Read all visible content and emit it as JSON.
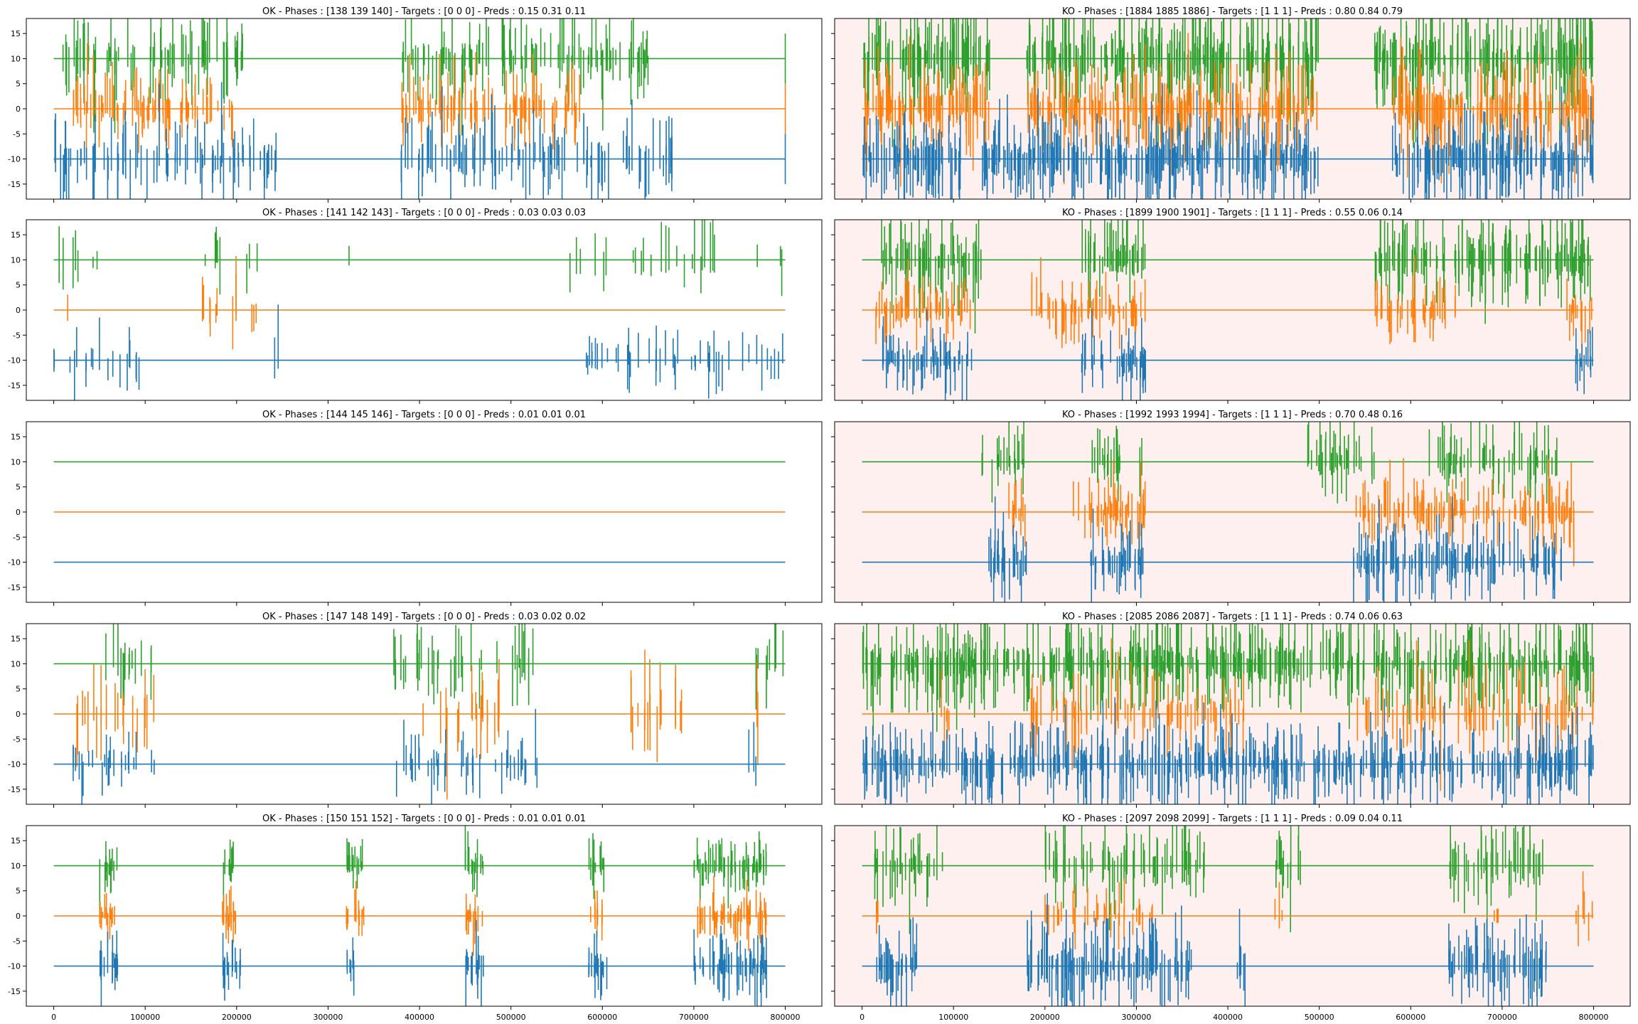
{
  "figure": {
    "background": "#ffffff",
    "ko_background": "#fff0f0",
    "colors": {
      "green": "#2ca02c",
      "orange": "#ff7f0e",
      "blue": "#1f77b4"
    },
    "sharey": true,
    "sharex": true
  },
  "chart_data": [
    {
      "type": "line",
      "title": "OK - Phases : [138 139 140] - Targets : [0 0 0] - Preds : 0.15 0.31 0.11",
      "highlight": false,
      "xlim": [
        -30000,
        840000
      ],
      "ylim": [
        -18,
        18
      ],
      "yticks": [
        -15,
        -10,
        -5,
        0,
        5,
        10,
        15
      ],
      "xticks": [
        0,
        100000,
        200000,
        300000,
        400000,
        500000,
        600000,
        700000,
        800000
      ],
      "show_xticklabels": false,
      "show_yticklabels": true,
      "series": [
        {
          "color": "green",
          "baseline": 10,
          "density": 0.55,
          "amp": 7,
          "clusters": [
            [
              10000,
              60000
            ],
            [
              60000,
              170000
            ],
            [
              170000,
              210000
            ],
            [
              380000,
              480000
            ],
            [
              490000,
              650000
            ]
          ]
        },
        {
          "color": "orange",
          "baseline": 0,
          "density": 0.6,
          "amp": 6,
          "clusters": [
            [
              20000,
              60000
            ],
            [
              60000,
              200000
            ],
            [
              380000,
              580000
            ]
          ]
        },
        {
          "color": "blue",
          "baseline": -10,
          "density": 0.45,
          "amp": 7,
          "clusters": [
            [
              0,
              100000
            ],
            [
              100000,
              250000
            ],
            [
              380000,
              580000
            ],
            [
              570000,
              680000
            ]
          ]
        }
      ],
      "ends": [
        800000
      ]
    },
    {
      "type": "line",
      "title": "KO - Phases : [1884 1885 1886] - Targets : [1 1 1] - Preds : 0.80 0.84 0.79",
      "highlight": true,
      "xlim": [
        -30000,
        840000
      ],
      "ylim": [
        -18,
        18
      ],
      "yticks": [
        -15,
        -10,
        -5,
        0,
        5,
        10,
        15
      ],
      "xticks": [
        0,
        100000,
        200000,
        300000,
        400000,
        500000,
        600000,
        700000,
        800000
      ],
      "show_xticklabels": false,
      "show_yticklabels": false,
      "series": [
        {
          "color": "green",
          "baseline": 10,
          "density": 0.95,
          "amp": 8,
          "clusters": [
            [
              0,
              140000
            ],
            [
              180000,
              500000
            ],
            [
              560000,
              800000
            ]
          ]
        },
        {
          "color": "orange",
          "baseline": 0,
          "density": 0.9,
          "amp": 7,
          "clusters": [
            [
              0,
              140000
            ],
            [
              180000,
              500000
            ],
            [
              580000,
              800000
            ]
          ]
        },
        {
          "color": "blue",
          "baseline": -10,
          "density": 0.95,
          "amp": 7,
          "clusters": [
            [
              0,
              110000
            ],
            [
              130000,
              500000
            ],
            [
              580000,
              800000
            ]
          ]
        }
      ]
    },
    {
      "type": "line",
      "title": "OK - Phases : [141 142 143] - Targets : [0 0 0] - Preds : 0.03 0.03 0.03",
      "highlight": false,
      "xlim": [
        -30000,
        840000
      ],
      "ylim": [
        -18,
        18
      ],
      "yticks": [
        -15,
        -10,
        -5,
        0,
        5,
        10,
        15
      ],
      "xticks": [
        0,
        100000,
        200000,
        300000,
        400000,
        500000,
        600000,
        700000,
        800000
      ],
      "show_xticklabels": false,
      "show_yticklabels": true,
      "series": [
        {
          "color": "green",
          "baseline": 10,
          "density": 0.15,
          "amp": 6,
          "clusters": [
            [
              0,
              60000
            ],
            [
              160000,
              230000
            ],
            [
              320000,
              330000
            ],
            [
              560000,
              800000
            ]
          ]
        },
        {
          "color": "orange",
          "baseline": 0,
          "density": 0.2,
          "amp": 6,
          "clusters": [
            [
              15000,
              20000
            ],
            [
              160000,
              240000
            ]
          ]
        },
        {
          "color": "blue",
          "baseline": -10,
          "density": 0.25,
          "amp": 5,
          "clusters": [
            [
              0,
              100000
            ],
            [
              240000,
              250000
            ],
            [
              560000,
              800000
            ]
          ]
        }
      ]
    },
    {
      "type": "line",
      "title": "KO - Phases : [1899 1900 1901] - Targets : [1 1 1] - Preds : 0.55 0.06 0.14",
      "highlight": true,
      "xlim": [
        -30000,
        840000
      ],
      "ylim": [
        -18,
        18
      ],
      "yticks": [
        -15,
        -10,
        -5,
        0,
        5,
        10,
        15
      ],
      "xticks": [
        0,
        100000,
        200000,
        300000,
        400000,
        500000,
        600000,
        700000,
        800000
      ],
      "show_xticklabels": false,
      "show_yticklabels": false,
      "series": [
        {
          "color": "green",
          "baseline": 10,
          "density": 0.8,
          "amp": 7,
          "clusters": [
            [
              20000,
              130000
            ],
            [
              240000,
              310000
            ],
            [
              560000,
              800000
            ]
          ]
        },
        {
          "color": "orange",
          "baseline": 0,
          "density": 0.6,
          "amp": 5,
          "clusters": [
            [
              15000,
              120000
            ],
            [
              180000,
              310000
            ],
            [
              560000,
              650000
            ],
            [
              770000,
              800000
            ]
          ]
        },
        {
          "color": "blue",
          "baseline": -10,
          "density": 0.8,
          "amp": 5,
          "clusters": [
            [
              20000,
              120000
            ],
            [
              240000,
              310000
            ],
            [
              780000,
              800000
            ]
          ]
        }
      ]
    },
    {
      "type": "line",
      "title": "OK - Phases : [144 145 146] - Targets : [0 0 0] - Preds : 0.01 0.01 0.01",
      "highlight": false,
      "xlim": [
        -30000,
        840000
      ],
      "ylim": [
        -18,
        18
      ],
      "yticks": [
        -15,
        -10,
        -5,
        0,
        5,
        10,
        15
      ],
      "xticks": [
        0,
        100000,
        200000,
        300000,
        400000,
        500000,
        600000,
        700000,
        800000
      ],
      "show_xticklabels": false,
      "show_yticklabels": true,
      "series": [
        {
          "color": "green",
          "baseline": 10,
          "density": 0,
          "amp": 0,
          "clusters": []
        },
        {
          "color": "orange",
          "baseline": 0,
          "density": 0,
          "amp": 0,
          "clusters": []
        },
        {
          "color": "blue",
          "baseline": -10,
          "density": 0,
          "amp": 0,
          "clusters": []
        }
      ]
    },
    {
      "type": "line",
      "title": "KO - Phases : [1992 1993 1994] - Targets : [1 1 1] - Preds : 0.70 0.48 0.16",
      "highlight": true,
      "xlim": [
        -30000,
        840000
      ],
      "ylim": [
        -18,
        18
      ],
      "yticks": [
        -15,
        -10,
        -5,
        0,
        5,
        10,
        15
      ],
      "xticks": [
        0,
        100000,
        200000,
        300000,
        400000,
        500000,
        600000,
        700000,
        800000
      ],
      "show_xticklabels": false,
      "show_yticklabels": false,
      "series": [
        {
          "color": "green",
          "baseline": 10,
          "density": 0.55,
          "amp": 6,
          "clusters": [
            [
              130000,
              180000
            ],
            [
              250000,
              310000
            ],
            [
              480000,
              560000
            ],
            [
              620000,
              760000
            ]
          ]
        },
        {
          "color": "orange",
          "baseline": 0,
          "density": 0.7,
          "amp": 5,
          "clusters": [
            [
              160000,
              180000
            ],
            [
              230000,
              310000
            ],
            [
              540000,
              780000
            ]
          ]
        },
        {
          "color": "blue",
          "baseline": -10,
          "density": 0.75,
          "amp": 6,
          "clusters": [
            [
              130000,
              180000
            ],
            [
              250000,
              310000
            ],
            [
              530000,
              770000
            ]
          ]
        }
      ]
    },
    {
      "type": "line",
      "title": "OK - Phases : [147 148 149] - Targets : [0 0 0] - Preds : 0.03 0.02 0.02",
      "highlight": false,
      "xlim": [
        -30000,
        840000
      ],
      "ylim": [
        -18,
        18
      ],
      "yticks": [
        -15,
        -10,
        -5,
        0,
        5,
        10,
        15
      ],
      "xticks": [
        0,
        100000,
        200000,
        300000,
        400000,
        500000,
        600000,
        700000,
        800000
      ],
      "show_xticklabels": false,
      "show_yticklabels": true,
      "series": [
        {
          "color": "green",
          "baseline": 10,
          "density": 0.3,
          "amp": 7,
          "clusters": [
            [
              50000,
              110000
            ],
            [
              370000,
              530000
            ],
            [
              760000,
              800000
            ]
          ]
        },
        {
          "color": "orange",
          "baseline": 0,
          "density": 0.3,
          "amp": 8,
          "clusters": [
            [
              20000,
              110000
            ],
            [
              400000,
              490000
            ],
            [
              620000,
              690000
            ],
            [
              760000,
              770000
            ]
          ]
        },
        {
          "color": "blue",
          "baseline": -10,
          "density": 0.35,
          "amp": 5,
          "clusters": [
            [
              20000,
              110000
            ],
            [
              370000,
              530000
            ],
            [
              760000,
              770000
            ]
          ]
        }
      ]
    },
    {
      "type": "line",
      "title": "KO - Phases : [2085 2086 2087] - Targets : [1 1 1] - Preds : 0.74 0.06 0.63",
      "highlight": true,
      "xlim": [
        -30000,
        840000
      ],
      "ylim": [
        -18,
        18
      ],
      "yticks": [
        -15,
        -10,
        -5,
        0,
        5,
        10,
        15
      ],
      "xticks": [
        0,
        100000,
        200000,
        300000,
        400000,
        500000,
        600000,
        700000,
        800000
      ],
      "show_xticklabels": false,
      "show_yticklabels": false,
      "series": [
        {
          "color": "green",
          "baseline": 10,
          "density": 0.85,
          "amp": 7,
          "clusters": [
            [
              0,
              800000
            ]
          ]
        },
        {
          "color": "orange",
          "baseline": 0,
          "density": 0.4,
          "amp": 7,
          "clusters": [
            [
              80000,
              100000
            ],
            [
              180000,
              420000
            ],
            [
              540000,
              800000
            ]
          ]
        },
        {
          "color": "blue",
          "baseline": -10,
          "density": 0.85,
          "amp": 6,
          "clusters": [
            [
              0,
              800000
            ]
          ]
        }
      ]
    },
    {
      "type": "line",
      "title": "OK - Phases : [150 151 152] - Targets : [0 0 0] - Preds : 0.01 0.01 0.01",
      "highlight": false,
      "xlim": [
        -30000,
        840000
      ],
      "ylim": [
        -18,
        18
      ],
      "yticks": [
        -15,
        -10,
        -5,
        0,
        5,
        10,
        15
      ],
      "xticks": [
        0,
        100000,
        200000,
        300000,
        400000,
        500000,
        600000,
        700000,
        800000
      ],
      "show_xticklabels": true,
      "show_yticklabels": true,
      "xticklabels": [
        "0",
        "100000",
        "200000",
        "300000",
        "400000",
        "500000",
        "600000",
        "700000",
        "800000"
      ],
      "series": [
        {
          "color": "green",
          "baseline": 10,
          "density": 0.95,
          "amp": 4,
          "clusters": [
            [
              50000,
              70000
            ],
            [
              185000,
              200000
            ],
            [
              320000,
              340000
            ],
            [
              450000,
              470000
            ],
            [
              585000,
              605000
            ],
            [
              700000,
              780000
            ]
          ]
        },
        {
          "color": "orange",
          "baseline": 0,
          "density": 0.95,
          "amp": 4,
          "clusters": [
            [
              50000,
              70000
            ],
            [
              180000,
              200000
            ],
            [
              320000,
              340000
            ],
            [
              450000,
              470000
            ],
            [
              585000,
              600000
            ],
            [
              700000,
              780000
            ]
          ]
        },
        {
          "color": "blue",
          "baseline": -10,
          "density": 0.95,
          "amp": 5,
          "clusters": [
            [
              50000,
              70000
            ],
            [
              185000,
              205000
            ],
            [
              320000,
              330000
            ],
            [
              450000,
              470000
            ],
            [
              585000,
              605000
            ],
            [
              700000,
              780000
            ]
          ]
        }
      ]
    },
    {
      "type": "line",
      "title": "KO - Phases : [2097 2098 2099] - Targets : [1 1 1] - Preds : 0.09 0.04 0.11",
      "highlight": true,
      "xlim": [
        -30000,
        840000
      ],
      "ylim": [
        -18,
        18
      ],
      "yticks": [
        -15,
        -10,
        -5,
        0,
        5,
        10,
        15
      ],
      "xticks": [
        0,
        100000,
        200000,
        300000,
        400000,
        500000,
        600000,
        700000,
        800000
      ],
      "show_xticklabels": true,
      "show_yticklabels": false,
      "xticklabels": [
        "0",
        "100000",
        "200000",
        "300000",
        "400000",
        "500000",
        "600000",
        "700000",
        "800000"
      ],
      "series": [
        {
          "color": "green",
          "baseline": 10,
          "density": 0.55,
          "amp": 7,
          "clusters": [
            [
              10000,
              90000
            ],
            [
              200000,
              380000
            ],
            [
              450000,
              480000
            ],
            [
              640000,
              750000
            ]
          ]
        },
        {
          "color": "orange",
          "baseline": 0,
          "density": 0.4,
          "amp": 5,
          "clusters": [
            [
              10000,
              20000
            ],
            [
              200000,
              320000
            ],
            [
              450000,
              460000
            ],
            [
              690000,
              700000
            ],
            [
              780000,
              800000
            ]
          ]
        },
        {
          "color": "blue",
          "baseline": -10,
          "density": 0.8,
          "amp": 7,
          "clusters": [
            [
              10000,
              60000
            ],
            [
              180000,
              360000
            ],
            [
              410000,
              420000
            ],
            [
              640000,
              750000
            ]
          ]
        }
      ]
    }
  ]
}
